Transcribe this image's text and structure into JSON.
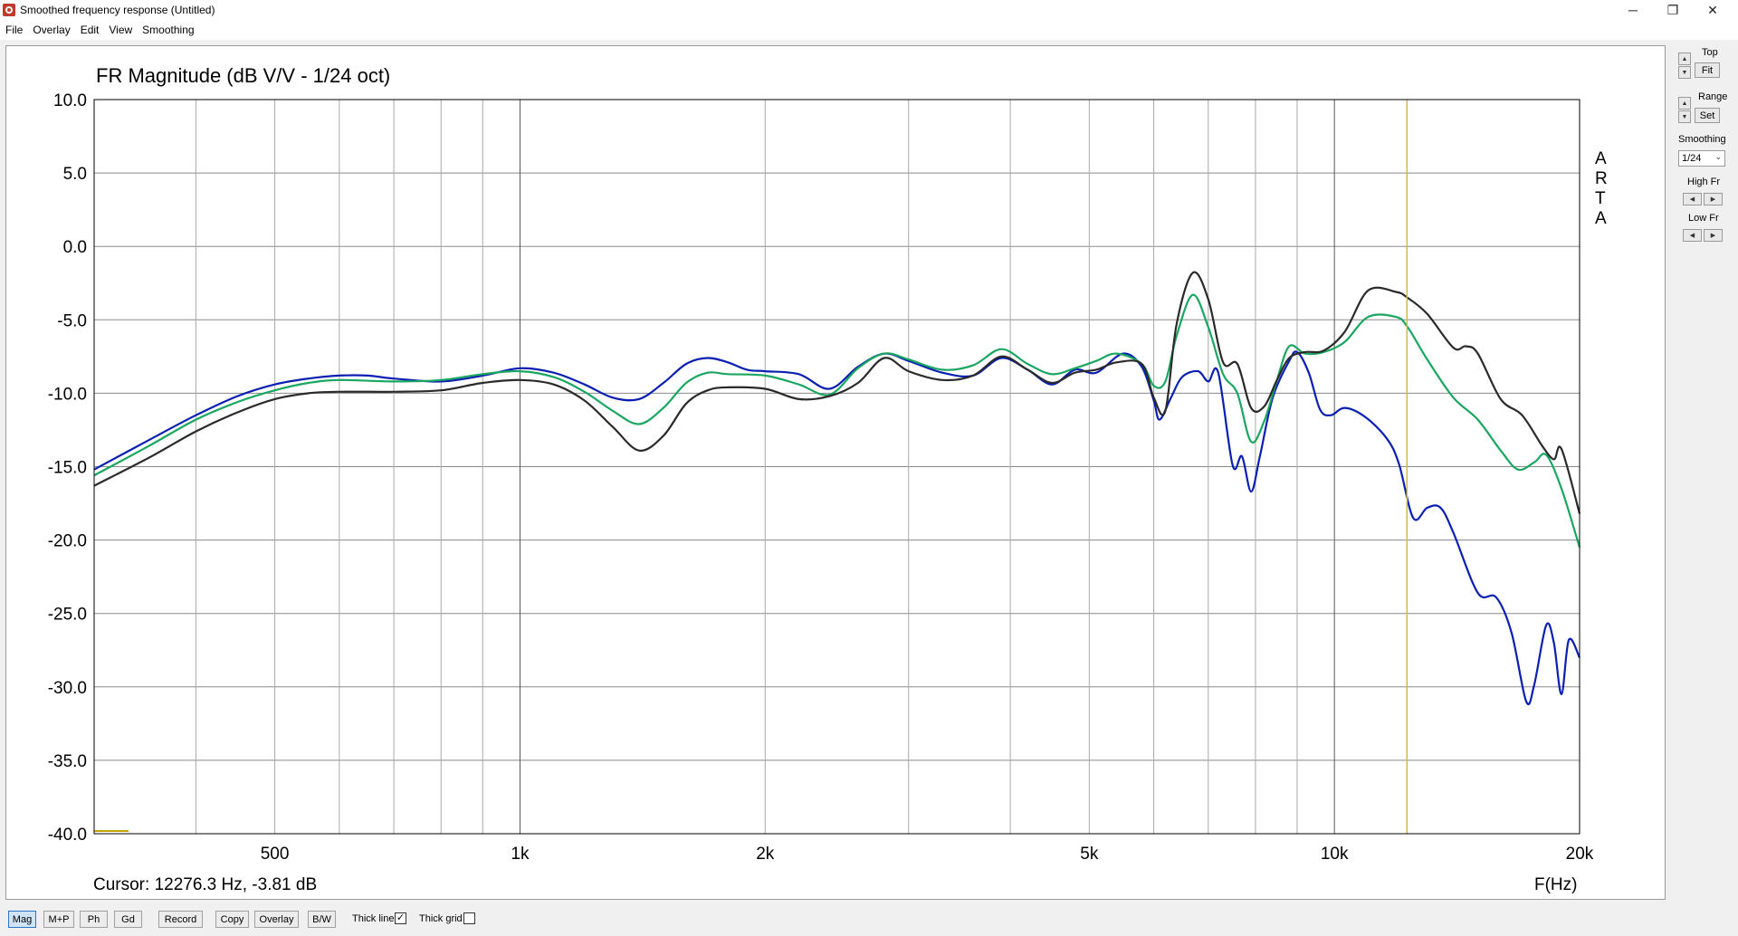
{
  "window": {
    "title": "Smoothed frequency response (Untitled)",
    "minimize_glyph": "─",
    "restore_glyph": "❐",
    "close_glyph": "✕"
  },
  "menu": [
    "File",
    "Overlay",
    "Edit",
    "View",
    "Smoothing"
  ],
  "plot": {
    "title": "FR Magnitude (dB V/V - 1/24 oct)",
    "watermark": [
      "A",
      "R",
      "T",
      "A"
    ],
    "cursor_readout": "Cursor: 12276.3 Hz, -3.81 dB",
    "x_unit_label": "F(Hz)",
    "y_tick_labels": [
      "10.0",
      "5.0",
      "0.0",
      "-5.0",
      "-10.0",
      "-15.0",
      "-20.0",
      "-25.0",
      "-30.0",
      "-35.0",
      "-40.0"
    ],
    "x_tick_labels": [
      "500",
      "1k",
      "2k",
      "5k",
      "10k",
      "20k"
    ]
  },
  "chart_data": {
    "type": "line",
    "title": "FR Magnitude (dB V/V - 1/24 oct)",
    "xlabel": "F(Hz)",
    "ylabel": "",
    "x_scale": "log",
    "xlim": [
      300,
      20000
    ],
    "ylim": [
      -40,
      10
    ],
    "y_ticks": [
      10,
      5,
      0,
      -5,
      -10,
      -15,
      -20,
      -25,
      -30,
      -35,
      -40
    ],
    "x_ticks": [
      500,
      1000,
      2000,
      5000,
      10000,
      20000
    ],
    "grid": true,
    "cursor_hz": 12276.3,
    "cursor_color": "#d4b84a",
    "series": [
      {
        "color": "#0a1fb0",
        "points": [
          [
            300,
            -15.2
          ],
          [
            350,
            -13.2
          ],
          [
            400,
            -11.5
          ],
          [
            450,
            -10.2
          ],
          [
            500,
            -9.4
          ],
          [
            550,
            -9.0
          ],
          [
            600,
            -8.8
          ],
          [
            650,
            -8.8
          ],
          [
            700,
            -9.0
          ],
          [
            800,
            -9.2
          ],
          [
            900,
            -8.8
          ],
          [
            1000,
            -8.3
          ],
          [
            1100,
            -8.6
          ],
          [
            1200,
            -9.4
          ],
          [
            1300,
            -10.3
          ],
          [
            1400,
            -10.4
          ],
          [
            1500,
            -9.3
          ],
          [
            1600,
            -8.0
          ],
          [
            1700,
            -7.6
          ],
          [
            1800,
            -7.9
          ],
          [
            1900,
            -8.4
          ],
          [
            2000,
            -8.5
          ],
          [
            2200,
            -8.7
          ],
          [
            2400,
            -9.7
          ],
          [
            2600,
            -8.2
          ],
          [
            2800,
            -7.3
          ],
          [
            3000,
            -7.8
          ],
          [
            3300,
            -8.6
          ],
          [
            3600,
            -8.8
          ],
          [
            3900,
            -7.6
          ],
          [
            4200,
            -8.4
          ],
          [
            4500,
            -9.4
          ],
          [
            4800,
            -8.4
          ],
          [
            5100,
            -8.6
          ],
          [
            5500,
            -7.3
          ],
          [
            5800,
            -8.2
          ],
          [
            6000,
            -10.5
          ],
          [
            6100,
            -11.8
          ],
          [
            6300,
            -10.3
          ],
          [
            6500,
            -8.9
          ],
          [
            6800,
            -8.5
          ],
          [
            7000,
            -9.2
          ],
          [
            7200,
            -8.6
          ],
          [
            7500,
            -14.9
          ],
          [
            7700,
            -14.3
          ],
          [
            7900,
            -16.7
          ],
          [
            8100,
            -14.3
          ],
          [
            8400,
            -10.3
          ],
          [
            8800,
            -7.8
          ],
          [
            9000,
            -7.2
          ],
          [
            9300,
            -8.6
          ],
          [
            9600,
            -11.1
          ],
          [
            9900,
            -11.5
          ],
          [
            10300,
            -11.0
          ],
          [
            10900,
            -11.6
          ],
          [
            11600,
            -13.1
          ],
          [
            12000,
            -14.8
          ],
          [
            12500,
            -18.5
          ],
          [
            13000,
            -17.8
          ],
          [
            13500,
            -17.8
          ],
          [
            14000,
            -19.5
          ],
          [
            15000,
            -23.6
          ],
          [
            15800,
            -23.9
          ],
          [
            16500,
            -26.3
          ],
          [
            17200,
            -31.0
          ],
          [
            17600,
            -29.8
          ],
          [
            18200,
            -25.8
          ],
          [
            18600,
            -27.0
          ],
          [
            19000,
            -30.5
          ],
          [
            19400,
            -26.8
          ],
          [
            20000,
            -28.0
          ]
        ]
      },
      {
        "color": "#1aa660",
        "points": [
          [
            300,
            -15.6
          ],
          [
            350,
            -13.6
          ],
          [
            400,
            -11.8
          ],
          [
            450,
            -10.6
          ],
          [
            500,
            -9.8
          ],
          [
            550,
            -9.3
          ],
          [
            600,
            -9.1
          ],
          [
            700,
            -9.2
          ],
          [
            800,
            -9.1
          ],
          [
            900,
            -8.7
          ],
          [
            1000,
            -8.5
          ],
          [
            1100,
            -8.9
          ],
          [
            1200,
            -9.9
          ],
          [
            1300,
            -11.2
          ],
          [
            1400,
            -12.1
          ],
          [
            1500,
            -11.0
          ],
          [
            1600,
            -9.3
          ],
          [
            1700,
            -8.6
          ],
          [
            1800,
            -8.7
          ],
          [
            2000,
            -8.8
          ],
          [
            2200,
            -9.4
          ],
          [
            2400,
            -10.1
          ],
          [
            2600,
            -8.3
          ],
          [
            2800,
            -7.3
          ],
          [
            3000,
            -7.7
          ],
          [
            3300,
            -8.4
          ],
          [
            3600,
            -8.1
          ],
          [
            3900,
            -7.0
          ],
          [
            4200,
            -8.0
          ],
          [
            4500,
            -8.7
          ],
          [
            4800,
            -8.3
          ],
          [
            5100,
            -7.8
          ],
          [
            5400,
            -7.3
          ],
          [
            5800,
            -8.0
          ],
          [
            6000,
            -9.5
          ],
          [
            6200,
            -9.2
          ],
          [
            6400,
            -6.1
          ],
          [
            6700,
            -3.3
          ],
          [
            7000,
            -5.5
          ],
          [
            7300,
            -8.7
          ],
          [
            7600,
            -10.0
          ],
          [
            7900,
            -13.3
          ],
          [
            8200,
            -11.9
          ],
          [
            8500,
            -9.1
          ],
          [
            8800,
            -6.8
          ],
          [
            9200,
            -7.3
          ],
          [
            9700,
            -7.2
          ],
          [
            10300,
            -6.5
          ],
          [
            11000,
            -4.8
          ],
          [
            11900,
            -4.8
          ],
          [
            12300,
            -5.5
          ],
          [
            13000,
            -7.7
          ],
          [
            14000,
            -10.3
          ],
          [
            15000,
            -11.8
          ],
          [
            16000,
            -13.9
          ],
          [
            16800,
            -15.2
          ],
          [
            17600,
            -14.7
          ],
          [
            18200,
            -14.2
          ],
          [
            19000,
            -16.5
          ],
          [
            20000,
            -20.5
          ]
        ]
      },
      {
        "color": "#2a2a2a",
        "points": [
          [
            300,
            -16.3
          ],
          [
            350,
            -14.4
          ],
          [
            400,
            -12.6
          ],
          [
            450,
            -11.3
          ],
          [
            500,
            -10.4
          ],
          [
            550,
            -10.0
          ],
          [
            600,
            -9.9
          ],
          [
            700,
            -9.9
          ],
          [
            800,
            -9.8
          ],
          [
            900,
            -9.3
          ],
          [
            1000,
            -9.1
          ],
          [
            1100,
            -9.4
          ],
          [
            1200,
            -10.5
          ],
          [
            1300,
            -12.3
          ],
          [
            1400,
            -13.9
          ],
          [
            1500,
            -12.9
          ],
          [
            1600,
            -10.7
          ],
          [
            1700,
            -9.8
          ],
          [
            1800,
            -9.6
          ],
          [
            2000,
            -9.7
          ],
          [
            2200,
            -10.4
          ],
          [
            2400,
            -10.2
          ],
          [
            2600,
            -9.3
          ],
          [
            2800,
            -7.6
          ],
          [
            3000,
            -8.5
          ],
          [
            3300,
            -9.1
          ],
          [
            3600,
            -8.8
          ],
          [
            3900,
            -7.5
          ],
          [
            4200,
            -8.4
          ],
          [
            4500,
            -9.3
          ],
          [
            4800,
            -8.6
          ],
          [
            5100,
            -8.4
          ],
          [
            5400,
            -7.9
          ],
          [
            5800,
            -8.0
          ],
          [
            6000,
            -10.3
          ],
          [
            6200,
            -11.2
          ],
          [
            6400,
            -5.3
          ],
          [
            6700,
            -1.8
          ],
          [
            7000,
            -3.6
          ],
          [
            7300,
            -7.9
          ],
          [
            7600,
            -8.0
          ],
          [
            7900,
            -11.0
          ],
          [
            8200,
            -10.9
          ],
          [
            8500,
            -9.1
          ],
          [
            8800,
            -7.6
          ],
          [
            9200,
            -7.2
          ],
          [
            9700,
            -7.1
          ],
          [
            10300,
            -5.8
          ],
          [
            11000,
            -3.0
          ],
          [
            11900,
            -3.1
          ],
          [
            12300,
            -3.5
          ],
          [
            13000,
            -4.6
          ],
          [
            14000,
            -6.9
          ],
          [
            14500,
            -6.8
          ],
          [
            15000,
            -7.3
          ],
          [
            16000,
            -10.4
          ],
          [
            17000,
            -11.5
          ],
          [
            18000,
            -13.6
          ],
          [
            18600,
            -14.5
          ],
          [
            19000,
            -13.8
          ],
          [
            20000,
            -18.2
          ]
        ]
      }
    ]
  },
  "side_panel": {
    "top_label": "Top",
    "fit_label": "Fit",
    "range_label": "Range",
    "set_label": "Set",
    "smoothing_label": "Smoothing",
    "smoothing_value": "1/24",
    "high_fr_label": "High Fr",
    "low_fr_label": "Low Fr",
    "up_glyph": "▲",
    "down_glyph": "▼",
    "left_glyph": "◀",
    "right_glyph": "▶"
  },
  "toolbar": {
    "buttons": [
      "Mag",
      "M+P",
      "Ph",
      "Gd",
      "Record",
      "Copy",
      "Overlay",
      "B/W"
    ],
    "active": "Mag",
    "thick_line_label": "Thick line",
    "thick_line_checked": true,
    "thick_grid_label": "Thick grid",
    "thick_grid_checked": false,
    "check_glyph": "✓"
  }
}
